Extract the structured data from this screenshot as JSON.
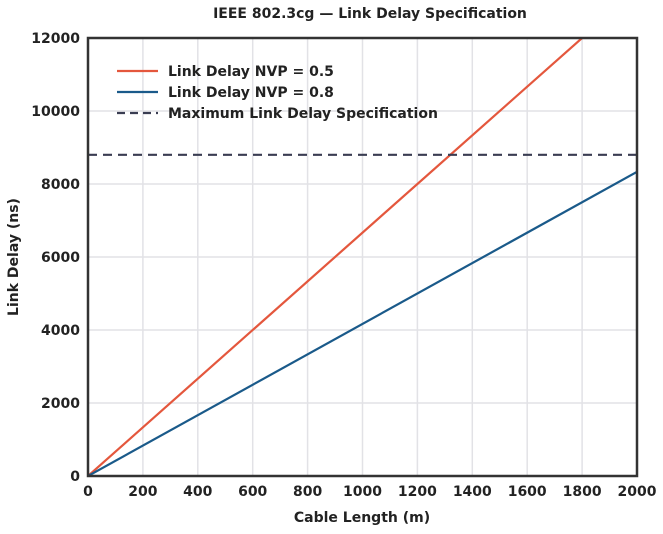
{
  "chart_data": {
    "type": "line",
    "title": "IEEE 802.3cg — Link Delay Specification",
    "xlabel": "Cable Length (m)",
    "ylabel": "Link Delay (ns)",
    "xlim": [
      0,
      2000
    ],
    "ylim": [
      0,
      12000
    ],
    "xticks": [
      0,
      200,
      400,
      600,
      800,
      1000,
      1200,
      1400,
      1600,
      1800,
      2000
    ],
    "yticks": [
      0,
      2000,
      4000,
      6000,
      8000,
      10000,
      12000
    ],
    "grid": true,
    "legend_position": "top-left",
    "series": [
      {
        "name": "Link Delay NVP = 0.5",
        "color": "#e4573d",
        "style": "solid",
        "x": [
          0,
          2000
        ],
        "y": [
          0,
          13333
        ]
      },
      {
        "name": "Link Delay NVP = 0.8",
        "color": "#1a5a8a",
        "style": "solid",
        "x": [
          0,
          2000
        ],
        "y": [
          0,
          8333
        ]
      },
      {
        "name": "Maximum Link Delay Specification",
        "color": "#3a3d52",
        "style": "dashed",
        "x": [
          0,
          2000
        ],
        "y": [
          8800,
          8800
        ]
      }
    ]
  }
}
